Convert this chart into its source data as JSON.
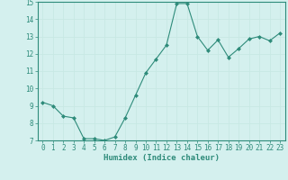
{
  "x": [
    0,
    1,
    2,
    3,
    4,
    5,
    6,
    7,
    8,
    9,
    10,
    11,
    12,
    13,
    14,
    15,
    16,
    17,
    18,
    19,
    20,
    21,
    22,
    23
  ],
  "y": [
    9.2,
    9.0,
    8.4,
    8.3,
    7.1,
    7.1,
    7.0,
    7.2,
    8.3,
    9.6,
    10.9,
    11.7,
    12.5,
    14.9,
    14.9,
    13.0,
    12.2,
    12.8,
    11.8,
    12.3,
    12.85,
    13.0,
    12.75,
    13.2
  ],
  "line_color": "#2e8b7a",
  "marker": "D",
  "marker_size": 2.0,
  "bg_color": "#d4f0ee",
  "grid_color": "#c8e8e4",
  "xlabel": "Humidex (Indice chaleur)",
  "ylim": [
    7,
    15
  ],
  "xlim": [
    -0.5,
    23.5
  ],
  "yticks": [
    7,
    8,
    9,
    10,
    11,
    12,
    13,
    14,
    15
  ],
  "xtick_labels": [
    "0",
    "1",
    "2",
    "3",
    "4",
    "5",
    "6",
    "7",
    "8",
    "9",
    "10",
    "11",
    "12",
    "13",
    "14",
    "15",
    "16",
    "17",
    "18",
    "19",
    "20",
    "21",
    "22",
    "23"
  ],
  "axis_fontsize": 6.5,
  "tick_fontsize": 5.5
}
